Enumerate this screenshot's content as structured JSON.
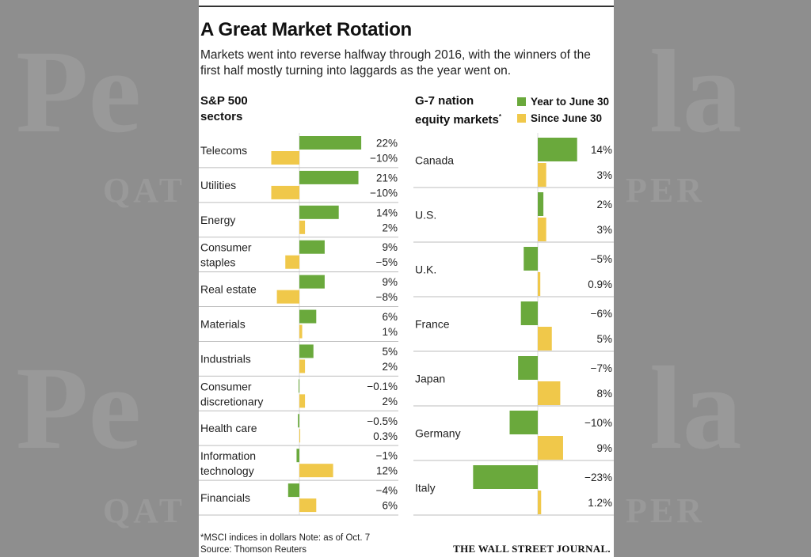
{
  "colors": {
    "green": "#6aa93c",
    "yellow": "#f0c84a",
    "divider": "#bdbdbd",
    "axis": "#c8c8c8"
  },
  "title": "A Great Market Rotation",
  "subtitle": "Markets went into reverse halfway through 2016, with the winners of the first half mostly turning into laggards as the year went on.",
  "left_panel": {
    "title_line1": "S&P 500",
    "title_line2": "sectors"
  },
  "right_panel": {
    "title_line1": "G-7 nation",
    "title_line2": "equity markets",
    "title_mark": "*"
  },
  "legend": {
    "series1": "Year to June 30",
    "series2": "Since June 30"
  },
  "footnote": {
    "line1": "*MSCI indices in dollars   Note: as of Oct. 7",
    "line2": "Source: Thomson Reuters"
  },
  "credit": "THE WALL STREET JOURNAL.",
  "chart_data": [
    {
      "type": "bar",
      "title": "S&P 500 sectors",
      "orientation": "horizontal",
      "categories": [
        [
          "Telecoms"
        ],
        [
          "Utilities"
        ],
        [
          "Energy"
        ],
        [
          "Consumer",
          "staples"
        ],
        [
          "Real estate"
        ],
        [
          "Materials"
        ],
        [
          "Industrials"
        ],
        [
          "Consumer",
          "discretionary"
        ],
        [
          "Health care"
        ],
        [
          "Information",
          "technology"
        ],
        [
          "Financials"
        ]
      ],
      "series": [
        {
          "name": "Year to June 30",
          "values": [
            22,
            21,
            14,
            9,
            9,
            6,
            5,
            -0.1,
            -0.5,
            -1,
            -4
          ],
          "labels": [
            "22%",
            "21%",
            "14%",
            "9%",
            "9%",
            "6%",
            "5%",
            "−0.1%",
            "−0.5%",
            "−1%",
            "−4%"
          ]
        },
        {
          "name": "Since June 30",
          "values": [
            -10,
            -10,
            2,
            -5,
            -8,
            1,
            2,
            2,
            0.3,
            12,
            6
          ],
          "labels": [
            "−10%",
            "−10%",
            "2%",
            "−5%",
            "−8%",
            "1%",
            "2%",
            "2%",
            "0.3%",
            "12%",
            "6%"
          ]
        }
      ]
    },
    {
      "type": "bar",
      "title": "G-7 nation equity markets",
      "orientation": "horizontal",
      "categories": [
        [
          "Canada"
        ],
        [
          "U.S."
        ],
        [
          "U.K."
        ],
        [
          "France"
        ],
        [
          "Japan"
        ],
        [
          "Germany"
        ],
        [
          "Italy"
        ]
      ],
      "series": [
        {
          "name": "Year to June 30",
          "values": [
            14,
            2,
            -5,
            -6,
            -7,
            -10,
            -23
          ],
          "labels": [
            "14%",
            "2%",
            "−5%",
            "−6%",
            "−7%",
            "−10%",
            "−23%"
          ]
        },
        {
          "name": "Since June 30",
          "values": [
            3,
            3,
            0.9,
            5,
            8,
            9,
            1.2
          ],
          "labels": [
            "3%",
            "3%",
            "0.9%",
            "5%",
            "8%",
            "9%",
            "1.2%"
          ]
        }
      ]
    }
  ]
}
